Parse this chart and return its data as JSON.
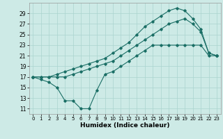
{
  "xlabel": "Humidex (Indice chaleur)",
  "xlim": [
    -0.5,
    23.5
  ],
  "ylim": [
    10,
    31
  ],
  "yticks": [
    11,
    13,
    15,
    17,
    19,
    21,
    23,
    25,
    27,
    29
  ],
  "xticks": [
    0,
    1,
    2,
    3,
    4,
    5,
    6,
    7,
    8,
    9,
    10,
    11,
    12,
    13,
    14,
    15,
    16,
    17,
    18,
    19,
    20,
    21,
    22,
    23
  ],
  "background_color": "#cdeae6",
  "grid_color": "#aad4cf",
  "line_color": "#1a6e65",
  "line1_x": [
    0,
    1,
    2,
    3,
    4,
    5,
    6,
    7,
    8,
    9,
    10,
    11,
    12,
    13,
    14,
    15,
    16,
    17,
    18,
    19,
    20,
    21,
    22,
    23
  ],
  "line1_y": [
    17,
    16.5,
    16,
    15,
    12.5,
    12.5,
    11,
    11,
    14.5,
    17.5,
    18,
    19,
    20,
    21,
    22,
    23,
    23,
    23,
    23,
    23,
    23,
    23,
    21,
    21
  ],
  "line2_x": [
    0,
    1,
    2,
    3,
    4,
    5,
    6,
    7,
    8,
    9,
    10,
    11,
    12,
    13,
    14,
    15,
    16,
    17,
    18,
    19,
    20,
    21,
    22,
    23
  ],
  "line2_y": [
    17,
    17,
    17,
    17,
    17,
    17.5,
    18,
    18.5,
    19,
    19.5,
    20,
    21,
    22,
    23,
    24,
    25,
    26,
    27,
    27.5,
    28,
    27,
    25.5,
    21.5,
    21
  ],
  "line3_x": [
    0,
    1,
    2,
    3,
    4,
    5,
    6,
    7,
    8,
    9,
    10,
    11,
    12,
    13,
    14,
    15,
    16,
    17,
    18,
    19,
    20,
    21,
    22,
    23
  ],
  "line3_y": [
    17,
    17,
    17,
    17.5,
    18,
    18.5,
    19,
    19.5,
    20,
    20.5,
    21.5,
    22.5,
    23.5,
    25,
    26.5,
    27.5,
    28.5,
    29.5,
    30,
    29.5,
    28,
    26,
    21.5,
    21
  ]
}
